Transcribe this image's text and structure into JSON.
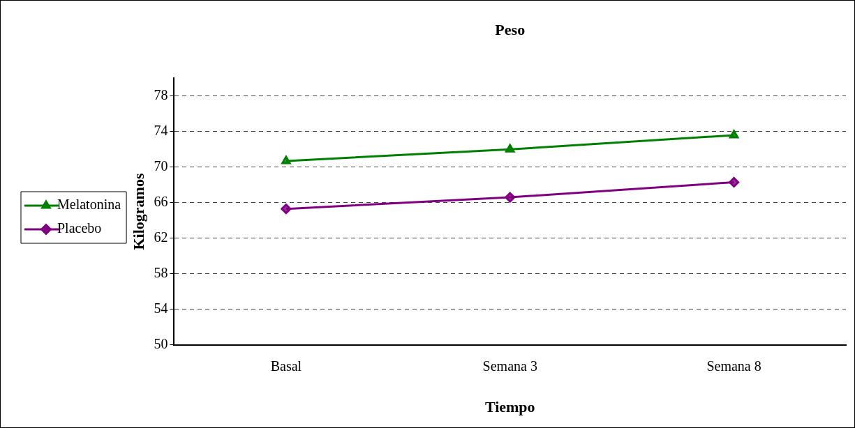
{
  "chart_data": {
    "type": "line",
    "title": "Peso",
    "xlabel": "Tiempo",
    "ylabel": "Kilogramos",
    "categories": [
      "Basal",
      "Semana 3",
      "Semana 8"
    ],
    "series": [
      {
        "name": "Melatonina",
        "color": "#008000",
        "marker": "triangle",
        "values": [
          70.7,
          72.0,
          73.6
        ]
      },
      {
        "name": "Placebo",
        "color": "#800080",
        "marker": "diamond",
        "values": [
          65.3,
          66.6,
          68.3
        ]
      }
    ],
    "ylim": [
      50,
      80
    ],
    "yticks": [
      50,
      54,
      58,
      62,
      66,
      70,
      74,
      78
    ],
    "grid": "y",
    "legend": "left",
    "line_style": "solid"
  }
}
